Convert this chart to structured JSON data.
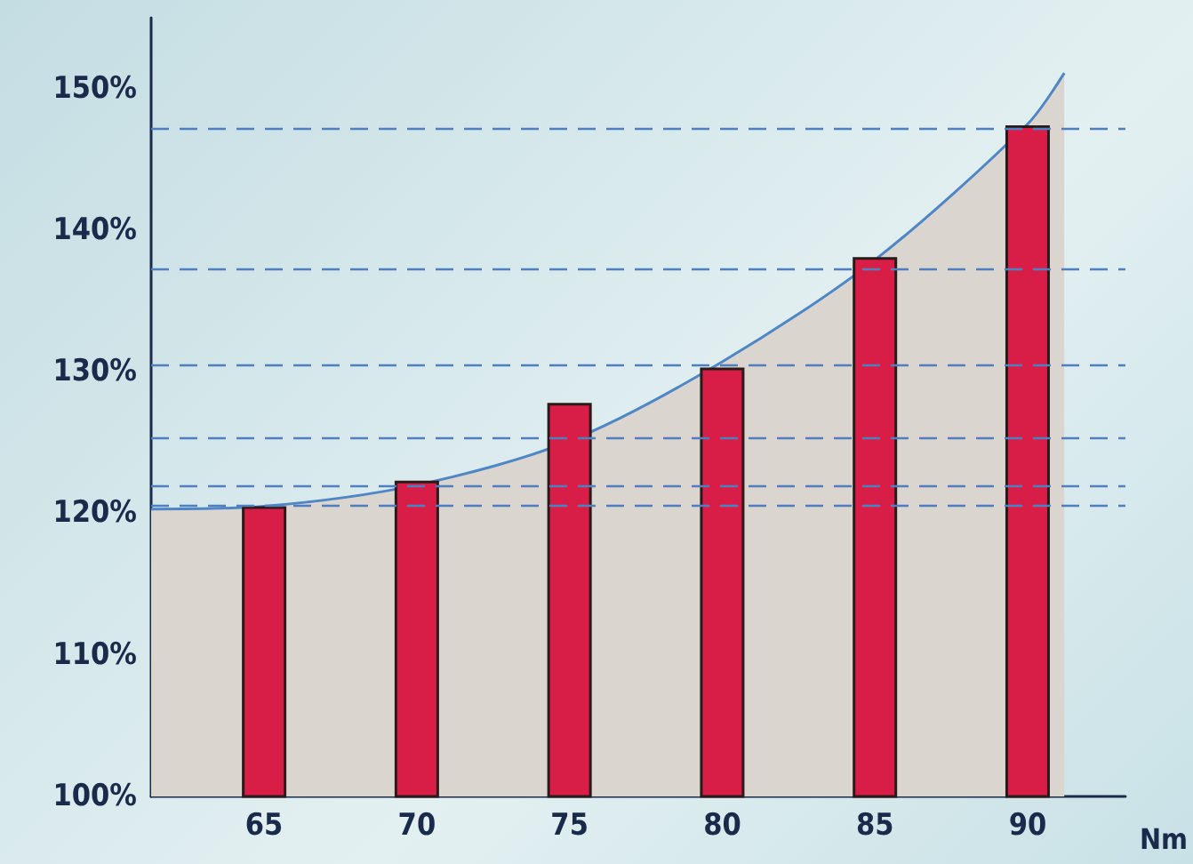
{
  "chart_data": {
    "type": "bar",
    "xlabel": "Nm",
    "x": [
      65,
      70,
      75,
      80,
      85,
      90
    ],
    "xlim": [
      61.3,
      93.2
    ],
    "xticks": [
      65,
      70,
      75,
      80,
      85,
      90
    ],
    "ylim": [
      100,
      155
    ],
    "yticks": [
      {
        "value": 100,
        "label": "100%"
      },
      {
        "value": 110,
        "label": "110%"
      },
      {
        "value": 120,
        "label": "120%"
      },
      {
        "value": 130,
        "label": "130%"
      },
      {
        "value": 140,
        "label": "140%"
      },
      {
        "value": 150,
        "label": "150%"
      }
    ],
    "series": [
      {
        "color": "#d81e47",
        "values": [
          120.5,
          122.3,
          127.8,
          130.3,
          138.1,
          147.4
        ]
      },
      {
        "type": "area",
        "color": "#4f86c6",
        "x": [
          61.3,
          65,
          70,
          75,
          80,
          85,
          90,
          91.2
        ],
        "values": [
          120.3,
          120.5,
          122,
          125.1,
          130.7,
          137.9,
          147.5,
          151.1
        ]
      }
    ],
    "ref_lines": [
      {
        "axis": "y",
        "value": 147.2,
        "color": "#4f7fc0",
        "line_style": "dashed"
      },
      {
        "axis": "y",
        "value": 137.3,
        "color": "#4f7fc0",
        "line_style": "dashed"
      },
      {
        "axis": "y",
        "value": 130.5,
        "color": "#4f7fc0",
        "line_style": "dashed"
      },
      {
        "axis": "y",
        "value": 125.3,
        "color": "#4f7fc0",
        "line_style": "dashed"
      },
      {
        "axis": "y",
        "value": 122,
        "color": "#4f7fc0",
        "line_style": "dashed"
      },
      {
        "axis": "y",
        "value": 120.6,
        "color": "#4f7fc0",
        "line_style": "dashed"
      }
    ],
    "grid": false
  }
}
